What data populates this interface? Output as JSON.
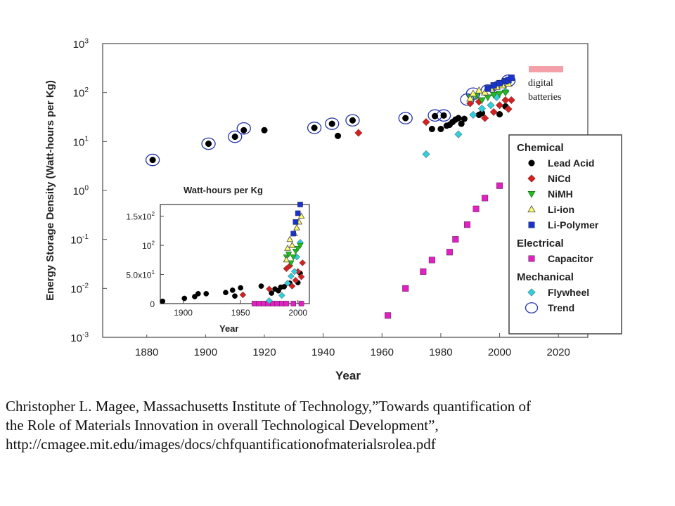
{
  "chart_data": [
    {
      "type": "scatter",
      "xlabel": "Year",
      "ylabel": "Energy Storage Density (Watt-hours per Kg)",
      "xlim": [
        1865,
        2030
      ],
      "ylim": [
        0.001,
        1000
      ],
      "yscale": "log",
      "grid": false,
      "xticks": [
        1880,
        1900,
        1920,
        1940,
        1960,
        1980,
        2000,
        2020
      ],
      "yticks": [
        {
          "value": 1000,
          "base": "10",
          "exp": "3"
        },
        {
          "value": 100,
          "base": "10",
          "exp": "2"
        },
        {
          "value": 10,
          "base": "10",
          "exp": "1"
        },
        {
          "value": 1,
          "base": "10",
          "exp": "0"
        },
        {
          "value": 0.1,
          "base": "10",
          "exp": "-1"
        },
        {
          "value": 0.01,
          "base": "10",
          "exp": "-2"
        },
        {
          "value": 0.001,
          "base": "10",
          "exp": "-3"
        }
      ],
      "legend": {
        "placement": "right",
        "groups": [
          {
            "title": "Chemical",
            "items": [
              {
                "label": "Lead Acid",
                "marker": "circle",
                "color": "#000000"
              },
              {
                "label": "NiCd",
                "marker": "diamond",
                "color": "#d42020"
              },
              {
                "label": "NiMH",
                "marker": "triangle-down",
                "color": "#22bb22"
              },
              {
                "label": "Li-ion",
                "marker": "triangle-up",
                "color": "#ffff66"
              },
              {
                "label": "Li-Polymer",
                "marker": "square",
                "color": "#1a33cc"
              }
            ]
          },
          {
            "title": "Electrical",
            "items": [
              {
                "label": "Capacitor",
                "marker": "square",
                "color": "#e020c0"
              }
            ]
          },
          {
            "title": "Mechanical",
            "items": [
              {
                "label": "Flywheel",
                "marker": "diamond",
                "color": "#33ccdd"
              },
              {
                "label": "Trend",
                "marker": "ring",
                "color": "#2233aa"
              }
            ]
          }
        ]
      },
      "annotation": {
        "lines": [
          "digital",
          "batteries"
        ],
        "color": "#f4a0a8"
      },
      "series": [
        {
          "name": "Lead Acid",
          "marker": "circle",
          "color": "#000000",
          "points": [
            [
              1882,
              4.2
            ],
            [
              1901,
              9
            ],
            [
              1910,
              12.5
            ],
            [
              1913,
              17
            ],
            [
              1920,
              17
            ],
            [
              1937,
              19
            ],
            [
              1943,
              23
            ],
            [
              1945,
              13
            ],
            [
              1950,
              27
            ],
            [
              1968,
              30
            ],
            [
              1977,
              18
            ],
            [
              1978,
              33
            ],
            [
              1980,
              18
            ],
            [
              1981,
              34
            ],
            [
              1982,
              21
            ],
            [
              1983,
              22
            ],
            [
              1984,
              25
            ],
            [
              1985,
              28
            ],
            [
              1986,
              30
            ],
            [
              1987,
              23
            ],
            [
              1988,
              29
            ],
            [
              1993,
              35
            ],
            [
              1994,
              38
            ],
            [
              2000,
              36
            ],
            [
              2002,
              52
            ]
          ]
        },
        {
          "name": "NiCd",
          "marker": "diamond",
          "color": "#d42020",
          "points": [
            [
              1952,
              15
            ],
            [
              1975,
              25
            ],
            [
              1990,
              60
            ],
            [
              1993,
              65
            ],
            [
              1995,
              30
            ],
            [
              1998,
              40
            ],
            [
              2000,
              55
            ],
            [
              2002,
              70
            ],
            [
              2003,
              46
            ],
            [
              2004,
              70
            ]
          ]
        },
        {
          "name": "NiMH",
          "marker": "triangle-down",
          "color": "#22bb22",
          "points": [
            [
              1990,
              80
            ],
            [
              1992,
              85
            ],
            [
              1994,
              70
            ],
            [
              1996,
              80
            ],
            [
              1998,
              90
            ],
            [
              2000,
              95
            ],
            [
              2002,
              100
            ]
          ]
        },
        {
          "name": "Li-ion",
          "marker": "triangle-up",
          "color": "#ffff66",
          "points": [
            [
              1990,
              75
            ],
            [
              1991,
              95
            ],
            [
              1993,
              110
            ],
            [
              1995,
              100
            ],
            [
              1997,
              120
            ],
            [
              1999,
              130
            ],
            [
              2001,
              140
            ],
            [
              2003,
              150
            ]
          ]
        },
        {
          "name": "Li-Polymer",
          "marker": "square",
          "color": "#1a33cc",
          "points": [
            [
              1996,
              120
            ],
            [
              1998,
              140
            ],
            [
              2000,
              155
            ],
            [
              2002,
              170
            ],
            [
              2003,
              180
            ],
            [
              2004,
              200
            ]
          ]
        },
        {
          "name": "Capacitor",
          "marker": "square",
          "color": "#e020c0",
          "points": [
            [
              1962,
              0.0028
            ],
            [
              1968,
              0.01
            ],
            [
              1974,
              0.022
            ],
            [
              1977,
              0.038
            ],
            [
              1983,
              0.055
            ],
            [
              1985,
              0.1
            ],
            [
              1989,
              0.2
            ],
            [
              1992,
              0.42
            ],
            [
              1995,
              0.7
            ],
            [
              2000,
              1.25
            ]
          ]
        },
        {
          "name": "Flywheel",
          "marker": "diamond",
          "color": "#33ccdd",
          "points": [
            [
              1975,
              5.5
            ],
            [
              1986,
              14
            ],
            [
              1991,
              35
            ],
            [
              1994,
              47
            ],
            [
              1997,
              55
            ],
            [
              1999,
              80
            ],
            [
              2002,
              105
            ]
          ]
        },
        {
          "name": "Trend",
          "marker": "ring",
          "color": "#2233aa",
          "points": [
            [
              1882,
              4.2
            ],
            [
              1901,
              9
            ],
            [
              1910,
              12.5
            ],
            [
              1913,
              18.5
            ],
            [
              1937,
              19
            ],
            [
              1943,
              23
            ],
            [
              1950,
              27
            ],
            [
              1968,
              30
            ],
            [
              1978,
              34
            ],
            [
              1981,
              34
            ],
            [
              1989,
              72
            ],
            [
              1991,
              95
            ],
            [
              1996,
              110
            ],
            [
              2000,
              135
            ],
            [
              2003,
              175
            ]
          ]
        }
      ]
    },
    {
      "type": "scatter",
      "title": "Watt-hours per Kg",
      "xlabel": "Year",
      "xlim": [
        1880,
        2010
      ],
      "ylim": [
        0,
        170
      ],
      "yscale": "linear",
      "xticks": [
        1900,
        1950,
        2000
      ],
      "yticks": [
        {
          "value": 0,
          "label": "0"
        },
        {
          "value": 50,
          "label": "5.0x10",
          "exp": "1"
        },
        {
          "value": 100,
          "label": "10",
          "exp": "2"
        },
        {
          "value": 150,
          "label": "1.5x10",
          "exp": "2"
        }
      ],
      "series": [
        {
          "name": "Lead Acid",
          "marker": "circle",
          "color": "#000000",
          "points": [
            [
              1882,
              4
            ],
            [
              1901,
              9
            ],
            [
              1910,
              12
            ],
            [
              1913,
              17
            ],
            [
              1920,
              17
            ],
            [
              1937,
              19
            ],
            [
              1943,
              23
            ],
            [
              1945,
              13
            ],
            [
              1950,
              27
            ],
            [
              1968,
              30
            ],
            [
              1977,
              18
            ],
            [
              1980,
              25
            ],
            [
              1983,
              22
            ],
            [
              1985,
              28
            ],
            [
              1988,
              29
            ],
            [
              1993,
              35
            ],
            [
              2000,
              36
            ],
            [
              2002,
              52
            ]
          ]
        },
        {
          "name": "NiCd",
          "marker": "diamond",
          "color": "#d42020",
          "points": [
            [
              1952,
              15
            ],
            [
              1975,
              25
            ],
            [
              1990,
              60
            ],
            [
              1993,
              65
            ],
            [
              1995,
              30
            ],
            [
              1998,
              40
            ],
            [
              2000,
              55
            ],
            [
              2003,
              46
            ],
            [
              2004,
              70
            ]
          ]
        },
        {
          "name": "NiMH",
          "marker": "triangle-down",
          "color": "#22bb22",
          "points": [
            [
              1990,
              80
            ],
            [
              1992,
              85
            ],
            [
              1994,
              70
            ],
            [
              1996,
              80
            ],
            [
              1998,
              90
            ],
            [
              2000,
              95
            ],
            [
              2002,
              100
            ]
          ]
        },
        {
          "name": "Li-ion",
          "marker": "triangle-up",
          "color": "#ffff66",
          "points": [
            [
              1990,
              75
            ],
            [
              1991,
              95
            ],
            [
              1993,
              110
            ],
            [
              1995,
              100
            ],
            [
              1997,
              120
            ],
            [
              1999,
              130
            ],
            [
              2001,
              140
            ],
            [
              2003,
              150
            ]
          ]
        },
        {
          "name": "Li-Polymer",
          "marker": "square",
          "color": "#1a33cc",
          "points": [
            [
              1996,
              120
            ],
            [
              1998,
              140
            ],
            [
              2000,
              155
            ],
            [
              2002,
              170
            ]
          ]
        },
        {
          "name": "Capacitor",
          "marker": "square",
          "color": "#e020c0",
          "points": [
            [
              1962,
              0
            ],
            [
              1966,
              0
            ],
            [
              1970,
              0
            ],
            [
              1974,
              0
            ],
            [
              1978,
              0
            ],
            [
              1982,
              0
            ],
            [
              1986,
              0
            ],
            [
              1990,
              0
            ],
            [
              1996,
              0
            ],
            [
              2003,
              0
            ]
          ]
        },
        {
          "name": "Flywheel",
          "marker": "diamond",
          "color": "#33ccdd",
          "points": [
            [
              1975,
              5
            ],
            [
              1986,
              14
            ],
            [
              1991,
              35
            ],
            [
              1994,
              47
            ],
            [
              1997,
              55
            ],
            [
              1999,
              80
            ],
            [
              2002,
              105
            ]
          ]
        }
      ]
    }
  ],
  "caption": {
    "line1": "Christopher L. Magee, Massachusetts Institute of Technology,”Towards quantification of",
    "line2": "the Role of Materials Innovation in overall Technological Development”,",
    "line3": "http://cmagee.mit.edu/images/docs/chfquantificationofmaterialsrolea.pdf"
  }
}
